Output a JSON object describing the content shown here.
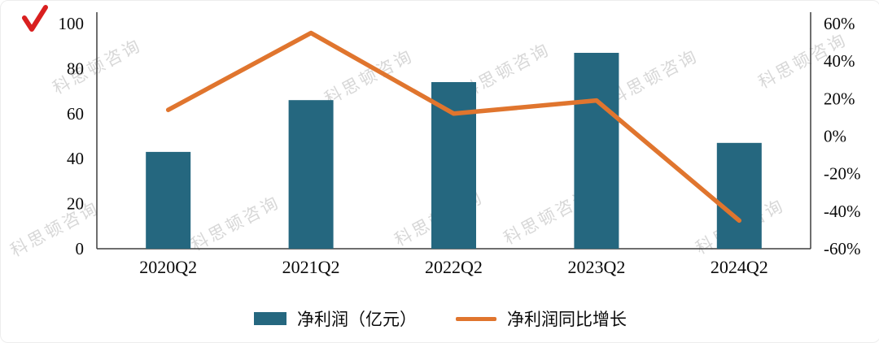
{
  "brand_mark": {
    "color": "#d91f1f"
  },
  "watermark": {
    "text": "科思顿咨询"
  },
  "chart_data": {
    "type": "combo",
    "categories": [
      "2020Q2",
      "2021Q2",
      "2022Q2",
      "2023Q2",
      "2024Q2"
    ],
    "series": [
      {
        "name": "净利润（亿元）",
        "type": "bar",
        "axis": "left",
        "color": "#25677f",
        "values": [
          43,
          66,
          74,
          87,
          47
        ]
      },
      {
        "name": "净利润同比增长",
        "type": "line",
        "axis": "right",
        "unit": "%",
        "color": "#e0752e",
        "values": [
          14,
          55,
          12,
          19,
          -45
        ]
      }
    ],
    "left_axis": {
      "min": 0,
      "max": 100,
      "step": 20,
      "tick_labels": [
        "0",
        "20",
        "40",
        "60",
        "80",
        "100"
      ]
    },
    "right_axis": {
      "min": -60,
      "max": 60,
      "step": 20,
      "tick_labels": [
        "-60%",
        "-40%",
        "-20%",
        "0%",
        "20%",
        "40%",
        "60%"
      ]
    },
    "grid": false,
    "legend_position": "bottom"
  },
  "legend": {
    "items": [
      {
        "label": "净利润（亿元）",
        "marker": "bar"
      },
      {
        "label": "净利润同比增长",
        "marker": "line"
      }
    ]
  }
}
